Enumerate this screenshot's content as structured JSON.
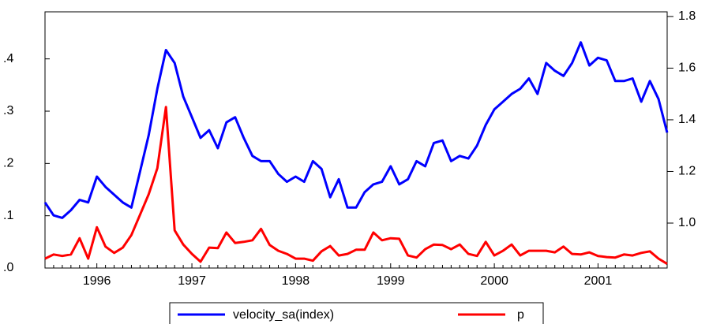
{
  "chart_data": {
    "type": "line",
    "categories": [
      null,
      null,
      null,
      null,
      null,
      null,
      "1996",
      null,
      null,
      null,
      null,
      null,
      null,
      null,
      null,
      null,
      null,
      "1997",
      null,
      null,
      null,
      null,
      null,
      null,
      null,
      null,
      null,
      null,
      null,
      "1998",
      null,
      null,
      null,
      null,
      null,
      null,
      null,
      null,
      null,
      null,
      "1999",
      null,
      null,
      null,
      null,
      null,
      null,
      null,
      null,
      null,
      null,
      null,
      "2000",
      null,
      null,
      null,
      null,
      null,
      null,
      null,
      null,
      null,
      null,
      null,
      "2001",
      null,
      null,
      null,
      null,
      null,
      null,
      null,
      null
    ],
    "series": [
      {
        "name": "velocity_sa(index)",
        "color": "#0000ff",
        "axis": "y2",
        "values": [
          1.08,
          1.03,
          1.02,
          1.05,
          1.09,
          1.08,
          1.18,
          1.14,
          1.11,
          1.08,
          1.06,
          1.2,
          1.34,
          1.52,
          1.67,
          1.62,
          1.49,
          1.41,
          1.33,
          1.36,
          1.29,
          1.39,
          1.41,
          1.33,
          1.26,
          1.24,
          1.24,
          1.19,
          1.16,
          1.18,
          1.16,
          1.24,
          1.21,
          1.1,
          1.17,
          1.06,
          1.06,
          1.12,
          1.15,
          1.16,
          1.22,
          1.15,
          1.17,
          1.24,
          1.22,
          1.31,
          1.32,
          1.24,
          1.26,
          1.25,
          1.3,
          1.38,
          1.44,
          1.47,
          1.5,
          1.52,
          1.56,
          1.5,
          1.62,
          1.59,
          1.57,
          1.62,
          1.7,
          1.61,
          1.64,
          1.63,
          1.55,
          1.55,
          1.56,
          1.47,
          1.55,
          1.48,
          1.35
        ]
      },
      {
        "name": "p",
        "color": "#ff0000",
        "values": [
          0.018,
          0.026,
          0.023,
          0.026,
          0.057,
          0.018,
          0.078,
          0.041,
          0.029,
          0.039,
          0.063,
          0.102,
          0.141,
          0.191,
          0.308,
          0.072,
          0.045,
          0.027,
          0.012,
          0.039,
          0.038,
          0.068,
          0.048,
          0.05,
          0.053,
          0.075,
          0.044,
          0.033,
          0.027,
          0.018,
          0.018,
          0.014,
          0.032,
          0.042,
          0.024,
          0.027,
          0.035,
          0.035,
          0.068,
          0.053,
          0.057,
          0.056,
          0.024,
          0.02,
          0.036,
          0.045,
          0.044,
          0.036,
          0.045,
          0.027,
          0.023,
          0.05,
          0.024,
          0.033,
          0.045,
          0.024,
          0.033,
          0.033,
          0.033,
          0.03,
          0.041,
          0.027,
          0.026,
          0.03,
          0.023,
          0.021,
          0.02,
          0.026,
          0.024,
          0.029,
          0.032,
          0.018,
          0.008
        ]
      }
    ],
    "ylim": [
      0,
      0.49
    ],
    "yticks": [
      {
        "value": 0,
        "label": ".0"
      },
      {
        "value": 0.1,
        "label": ".1"
      },
      {
        "value": 0.2,
        "label": ".2"
      },
      {
        "value": 0.3,
        "label": ".3"
      },
      {
        "value": 0.4,
        "label": ".4"
      }
    ],
    "y2lim": [
      0.826,
      1.818
    ],
    "y2ticks": [
      {
        "value": 1.0,
        "label": "1.0"
      },
      1.2,
      1.4,
      1.6,
      1.8
    ],
    "legend": "bottom"
  }
}
